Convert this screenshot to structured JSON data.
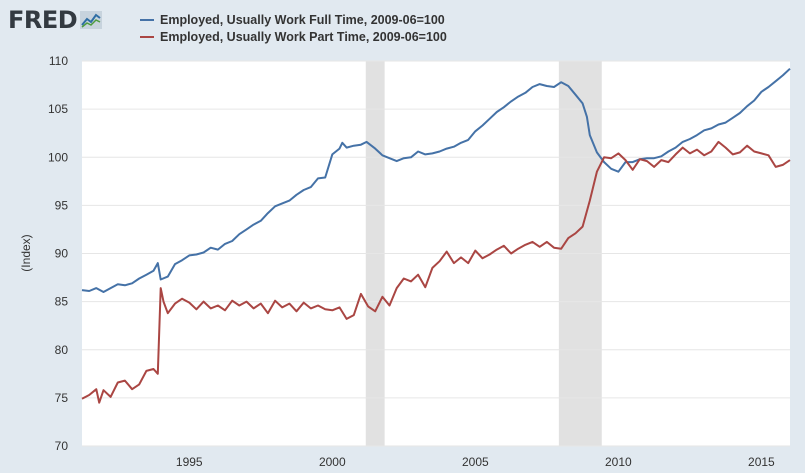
{
  "header": {
    "logo_text": "FRED",
    "logo_icon": "line-graph-icon"
  },
  "colors": {
    "background": "#e1e9f0",
    "plot_background": "#ffffff",
    "gridline": "#e6e6e6",
    "recession_shade": "#e1e1e1",
    "full_time_line": "#4572a7",
    "part_time_line": "#aa4643"
  },
  "chart_data": {
    "type": "line",
    "title": "",
    "xlabel": "",
    "ylabel": "(Index)",
    "xlim": [
      1991.25,
      2016.0
    ],
    "ylim": [
      70,
      110
    ],
    "grid": true,
    "legend_placement": "top-left",
    "x_ticks": [
      {
        "value": 1995,
        "label": "1995"
      },
      {
        "value": 2000,
        "label": "2000"
      },
      {
        "value": 2005,
        "label": "2005"
      },
      {
        "value": 2010,
        "label": "2010"
      },
      {
        "value": 2015,
        "label": "2015"
      }
    ],
    "y_ticks": [
      {
        "value": 70,
        "label": "70"
      },
      {
        "value": 75,
        "label": "75"
      },
      {
        "value": 80,
        "label": "80"
      },
      {
        "value": 85,
        "label": "85"
      },
      {
        "value": 90,
        "label": "90"
      },
      {
        "value": 95,
        "label": "95"
      },
      {
        "value": 100,
        "label": "100"
      },
      {
        "value": 105,
        "label": "105"
      },
      {
        "value": 110,
        "label": "110"
      }
    ],
    "recessions": [
      {
        "start": 2001.17,
        "end": 2001.83
      },
      {
        "start": 2007.92,
        "end": 2009.42
      }
    ],
    "series": [
      {
        "name": "Employed, Usually Work Full Time, 2009-06=100",
        "color": "#4572a7",
        "points": [
          [
            1991.25,
            86.2
          ],
          [
            1991.5,
            86.1
          ],
          [
            1991.75,
            86.4
          ],
          [
            1992.0,
            86.0
          ],
          [
            1992.25,
            86.4
          ],
          [
            1992.5,
            86.8
          ],
          [
            1992.75,
            86.7
          ],
          [
            1993.0,
            86.9
          ],
          [
            1993.25,
            87.4
          ],
          [
            1993.5,
            87.8
          ],
          [
            1993.75,
            88.2
          ],
          [
            1993.9,
            89.0
          ],
          [
            1994.0,
            87.3
          ],
          [
            1994.25,
            87.6
          ],
          [
            1994.5,
            88.9
          ],
          [
            1994.75,
            89.3
          ],
          [
            1995.0,
            89.8
          ],
          [
            1995.25,
            89.9
          ],
          [
            1995.5,
            90.1
          ],
          [
            1995.75,
            90.6
          ],
          [
            1996.0,
            90.4
          ],
          [
            1996.25,
            91.0
          ],
          [
            1996.5,
            91.3
          ],
          [
            1996.75,
            92.0
          ],
          [
            1997.0,
            92.5
          ],
          [
            1997.25,
            93.0
          ],
          [
            1997.5,
            93.4
          ],
          [
            1997.75,
            94.2
          ],
          [
            1998.0,
            94.9
          ],
          [
            1998.25,
            95.2
          ],
          [
            1998.5,
            95.5
          ],
          [
            1998.75,
            96.1
          ],
          [
            1999.0,
            96.6
          ],
          [
            1999.25,
            96.9
          ],
          [
            1999.5,
            97.8
          ],
          [
            1999.75,
            97.9
          ],
          [
            2000.0,
            100.3
          ],
          [
            2000.25,
            100.9
          ],
          [
            2000.35,
            101.5
          ],
          [
            2000.5,
            101.0
          ],
          [
            2000.75,
            101.2
          ],
          [
            2001.0,
            101.3
          ],
          [
            2001.2,
            101.6
          ],
          [
            2001.5,
            100.9
          ],
          [
            2001.75,
            100.2
          ],
          [
            2002.0,
            99.9
          ],
          [
            2002.25,
            99.6
          ],
          [
            2002.5,
            99.9
          ],
          [
            2002.75,
            100.0
          ],
          [
            2003.0,
            100.6
          ],
          [
            2003.25,
            100.3
          ],
          [
            2003.5,
            100.4
          ],
          [
            2003.75,
            100.6
          ],
          [
            2004.0,
            100.9
          ],
          [
            2004.25,
            101.1
          ],
          [
            2004.5,
            101.5
          ],
          [
            2004.75,
            101.8
          ],
          [
            2005.0,
            102.7
          ],
          [
            2005.25,
            103.3
          ],
          [
            2005.5,
            104.0
          ],
          [
            2005.75,
            104.7
          ],
          [
            2006.0,
            105.2
          ],
          [
            2006.25,
            105.8
          ],
          [
            2006.5,
            106.3
          ],
          [
            2006.75,
            106.7
          ],
          [
            2007.0,
            107.3
          ],
          [
            2007.25,
            107.6
          ],
          [
            2007.5,
            107.4
          ],
          [
            2007.75,
            107.3
          ],
          [
            2008.0,
            107.8
          ],
          [
            2008.25,
            107.4
          ],
          [
            2008.5,
            106.5
          ],
          [
            2008.75,
            105.6
          ],
          [
            2008.9,
            104.2
          ],
          [
            2009.0,
            102.3
          ],
          [
            2009.25,
            100.5
          ],
          [
            2009.5,
            99.5
          ],
          [
            2009.75,
            98.8
          ],
          [
            2010.0,
            98.5
          ],
          [
            2010.25,
            99.5
          ],
          [
            2010.5,
            99.5
          ],
          [
            2010.75,
            99.8
          ],
          [
            2011.0,
            99.9
          ],
          [
            2011.25,
            99.9
          ],
          [
            2011.5,
            100.1
          ],
          [
            2011.75,
            100.6
          ],
          [
            2012.0,
            101.0
          ],
          [
            2012.25,
            101.6
          ],
          [
            2012.5,
            101.9
          ],
          [
            2012.75,
            102.3
          ],
          [
            2013.0,
            102.8
          ],
          [
            2013.25,
            103.0
          ],
          [
            2013.5,
            103.4
          ],
          [
            2013.75,
            103.6
          ],
          [
            2014.0,
            104.1
          ],
          [
            2014.25,
            104.6
          ],
          [
            2014.5,
            105.3
          ],
          [
            2014.75,
            105.9
          ],
          [
            2015.0,
            106.8
          ],
          [
            2015.25,
            107.3
          ],
          [
            2015.5,
            107.9
          ],
          [
            2015.75,
            108.5
          ],
          [
            2016.0,
            109.2
          ]
        ]
      },
      {
        "name": "Employed, Usually Work Part Time, 2009-06=100",
        "color": "#aa4643",
        "points": [
          [
            1991.25,
            74.9
          ],
          [
            1991.5,
            75.3
          ],
          [
            1991.75,
            75.9
          ],
          [
            1991.85,
            74.5
          ],
          [
            1992.0,
            75.8
          ],
          [
            1992.25,
            75.1
          ],
          [
            1992.5,
            76.6
          ],
          [
            1992.75,
            76.8
          ],
          [
            1993.0,
            75.9
          ],
          [
            1993.25,
            76.4
          ],
          [
            1993.5,
            77.8
          ],
          [
            1993.75,
            78.0
          ],
          [
            1993.9,
            77.5
          ],
          [
            1994.0,
            86.4
          ],
          [
            1994.1,
            85.0
          ],
          [
            1994.25,
            83.8
          ],
          [
            1994.5,
            84.8
          ],
          [
            1994.75,
            85.3
          ],
          [
            1995.0,
            84.9
          ],
          [
            1995.25,
            84.2
          ],
          [
            1995.5,
            85.0
          ],
          [
            1995.75,
            84.3
          ],
          [
            1996.0,
            84.6
          ],
          [
            1996.25,
            84.1
          ],
          [
            1996.5,
            85.1
          ],
          [
            1996.75,
            84.6
          ],
          [
            1997.0,
            85.0
          ],
          [
            1997.25,
            84.3
          ],
          [
            1997.5,
            84.8
          ],
          [
            1997.75,
            83.8
          ],
          [
            1998.0,
            85.1
          ],
          [
            1998.25,
            84.4
          ],
          [
            1998.5,
            84.8
          ],
          [
            1998.75,
            84.0
          ],
          [
            1999.0,
            84.9
          ],
          [
            1999.25,
            84.3
          ],
          [
            1999.5,
            84.6
          ],
          [
            1999.75,
            84.2
          ],
          [
            2000.0,
            84.1
          ],
          [
            2000.25,
            84.4
          ],
          [
            2000.5,
            83.2
          ],
          [
            2000.75,
            83.6
          ],
          [
            2001.0,
            85.8
          ],
          [
            2001.25,
            84.5
          ],
          [
            2001.5,
            84.0
          ],
          [
            2001.75,
            85.5
          ],
          [
            2002.0,
            84.6
          ],
          [
            2002.25,
            86.4
          ],
          [
            2002.5,
            87.4
          ],
          [
            2002.75,
            87.1
          ],
          [
            2003.0,
            87.8
          ],
          [
            2003.25,
            86.5
          ],
          [
            2003.5,
            88.5
          ],
          [
            2003.75,
            89.2
          ],
          [
            2004.0,
            90.2
          ],
          [
            2004.25,
            89.0
          ],
          [
            2004.5,
            89.6
          ],
          [
            2004.75,
            89.0
          ],
          [
            2005.0,
            90.3
          ],
          [
            2005.25,
            89.5
          ],
          [
            2005.5,
            89.9
          ],
          [
            2005.75,
            90.4
          ],
          [
            2006.0,
            90.8
          ],
          [
            2006.25,
            90.0
          ],
          [
            2006.5,
            90.5
          ],
          [
            2006.75,
            90.9
          ],
          [
            2007.0,
            91.2
          ],
          [
            2007.25,
            90.7
          ],
          [
            2007.5,
            91.2
          ],
          [
            2007.75,
            90.6
          ],
          [
            2008.0,
            90.5
          ],
          [
            2008.25,
            91.6
          ],
          [
            2008.5,
            92.1
          ],
          [
            2008.75,
            92.8
          ],
          [
            2009.0,
            95.5
          ],
          [
            2009.25,
            98.5
          ],
          [
            2009.5,
            100.0
          ],
          [
            2009.75,
            99.9
          ],
          [
            2010.0,
            100.4
          ],
          [
            2010.25,
            99.7
          ],
          [
            2010.5,
            98.7
          ],
          [
            2010.75,
            99.8
          ],
          [
            2011.0,
            99.6
          ],
          [
            2011.25,
            99.0
          ],
          [
            2011.5,
            99.7
          ],
          [
            2011.75,
            99.5
          ],
          [
            2012.0,
            100.3
          ],
          [
            2012.25,
            101.0
          ],
          [
            2012.5,
            100.4
          ],
          [
            2012.75,
            100.8
          ],
          [
            2013.0,
            100.2
          ],
          [
            2013.25,
            100.6
          ],
          [
            2013.5,
            101.6
          ],
          [
            2013.75,
            101.0
          ],
          [
            2014.0,
            100.3
          ],
          [
            2014.25,
            100.5
          ],
          [
            2014.5,
            101.2
          ],
          [
            2014.75,
            100.6
          ],
          [
            2015.0,
            100.4
          ],
          [
            2015.25,
            100.2
          ],
          [
            2015.5,
            99.0
          ],
          [
            2015.75,
            99.2
          ],
          [
            2016.0,
            99.7
          ]
        ]
      }
    ]
  }
}
